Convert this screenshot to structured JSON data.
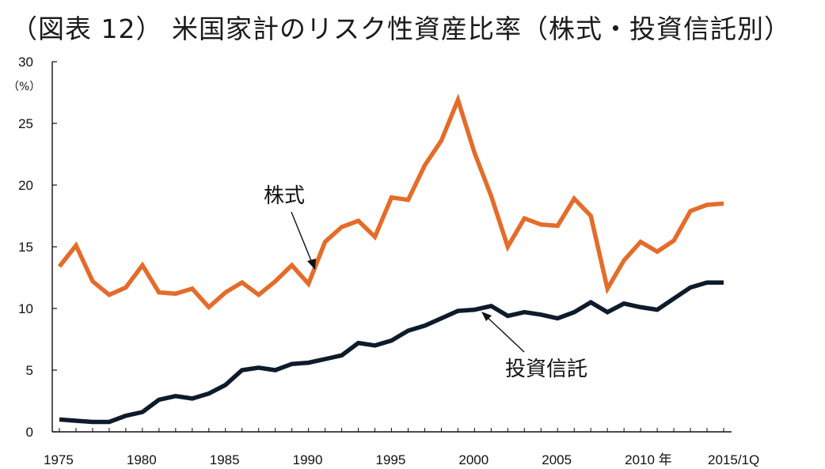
{
  "chart_data": {
    "type": "line",
    "title": "（図表 12） 米国家計のリスク性資産比率（株式・投資信託別）",
    "ylabel": "（%）",
    "xlabel": "年",
    "ylim": [
      0,
      30
    ],
    "yticks": [
      0,
      5,
      10,
      15,
      20,
      25,
      30
    ],
    "xlim": [
      1975,
      2015
    ],
    "x": [
      1975,
      1976,
      1977,
      1978,
      1979,
      1980,
      1981,
      1982,
      1983,
      1984,
      1985,
      1986,
      1987,
      1988,
      1989,
      1990,
      1991,
      1992,
      1993,
      1994,
      1995,
      1996,
      1997,
      1998,
      1999,
      2000,
      2001,
      2002,
      2003,
      2004,
      2005,
      2006,
      2007,
      2008,
      2009,
      2010,
      2011,
      2012,
      2013,
      2014,
      2015
    ],
    "xtick_labels": [
      {
        "x": 1975,
        "label": "1975"
      },
      {
        "x": 1980,
        "label": "1980"
      },
      {
        "x": 1985,
        "label": "1985"
      },
      {
        "x": 1990,
        "label": "1990"
      },
      {
        "x": 1995,
        "label": "1995"
      },
      {
        "x": 2000,
        "label": "2000"
      },
      {
        "x": 2005,
        "label": "2005"
      },
      {
        "x": 2010,
        "label": "2010 年"
      },
      {
        "x": 2015,
        "label": "2015/1Q"
      }
    ],
    "grid": false,
    "series": [
      {
        "name": "株式",
        "color": "#E46C2A",
        "values": [
          13.4,
          15.1,
          12.2,
          11.1,
          11.7,
          13.5,
          11.3,
          11.2,
          11.6,
          10.1,
          11.3,
          12.1,
          11.1,
          12.2,
          13.5,
          12.0,
          15.4,
          16.6,
          17.1,
          15.8,
          19.0,
          18.8,
          21.6,
          23.6,
          26.9,
          22.6,
          19.1,
          15.0,
          17.3,
          16.8,
          16.7,
          18.9,
          17.5,
          11.6,
          13.9,
          15.4,
          14.6,
          15.5,
          17.9,
          18.4,
          18.5
        ]
      },
      {
        "name": "投資信託",
        "color": "#0D1B2A",
        "values": [
          1.0,
          0.9,
          0.8,
          0.8,
          1.3,
          1.6,
          2.6,
          2.9,
          2.7,
          3.1,
          3.8,
          5.0,
          5.2,
          5.0,
          5.5,
          5.6,
          5.9,
          6.2,
          7.2,
          7.0,
          7.4,
          8.2,
          8.6,
          9.2,
          9.8,
          9.9,
          10.2,
          9.4,
          9.7,
          9.5,
          9.2,
          9.7,
          10.5,
          9.7,
          10.4,
          10.1,
          9.9,
          10.8,
          11.7,
          12.1,
          12.1
        ]
      }
    ],
    "annotations": [
      {
        "text": "株式",
        "series": "株式",
        "points_to_x": 1990
      },
      {
        "text": "投資信託",
        "series": "投資信託",
        "points_to_x": 2000
      }
    ]
  }
}
